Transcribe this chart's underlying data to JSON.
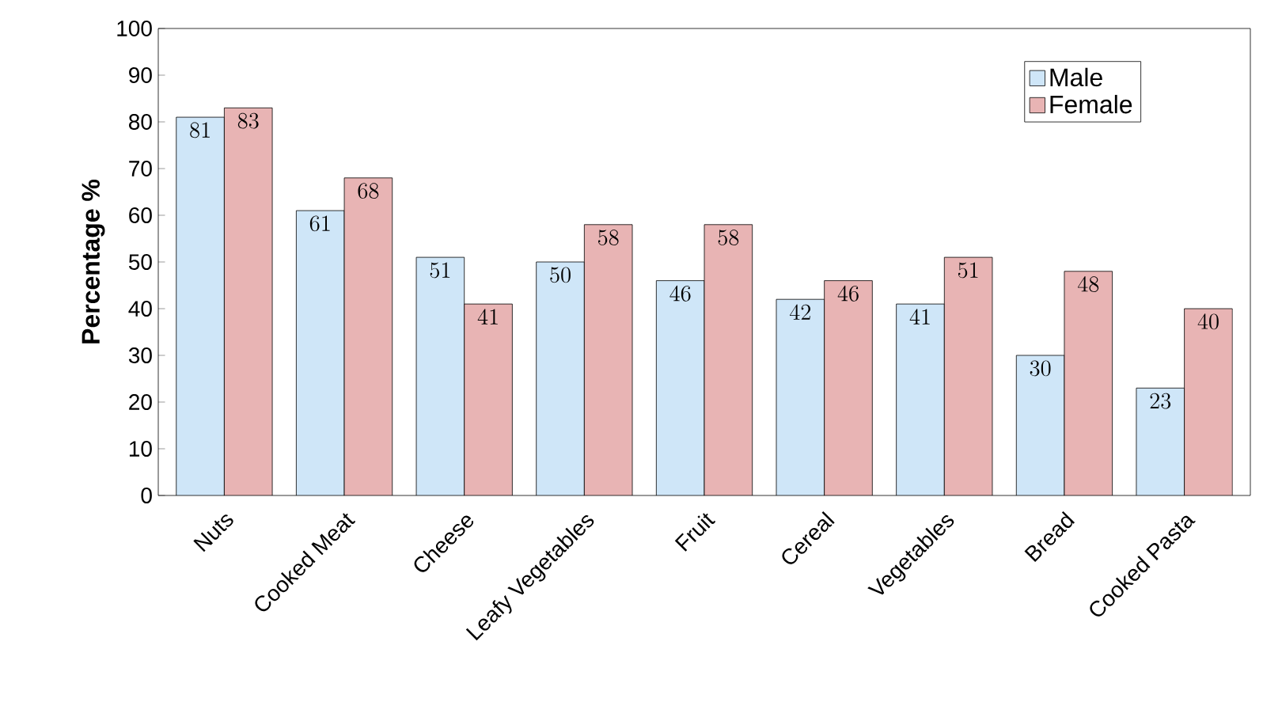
{
  "chart_data": {
    "type": "bar",
    "ylabel": "**Percentage %**",
    "categories": [
      "Nuts",
      "Cooked Meat",
      "Cheese",
      "Leafy Vegetables",
      "Fruit",
      "Cereal",
      "Vegetables",
      "Bread",
      "Cooked Pasta"
    ],
    "series": [
      {
        "name": "Male",
        "color": "#cfe6f8",
        "values": [
          81,
          61,
          51,
          50,
          46,
          42,
          41,
          30,
          23
        ]
      },
      {
        "name": "Female",
        "color": "#e8b4b4",
        "values": [
          83,
          68,
          41,
          58,
          58,
          46,
          51,
          48,
          40
        ]
      }
    ],
    "ylim": [
      0,
      100
    ],
    "yticks": [
      0,
      10,
      20,
      30,
      40,
      50,
      60,
      70,
      80,
      90,
      100
    ],
    "data_labels": true,
    "legend": "top right",
    "grid": false
  }
}
